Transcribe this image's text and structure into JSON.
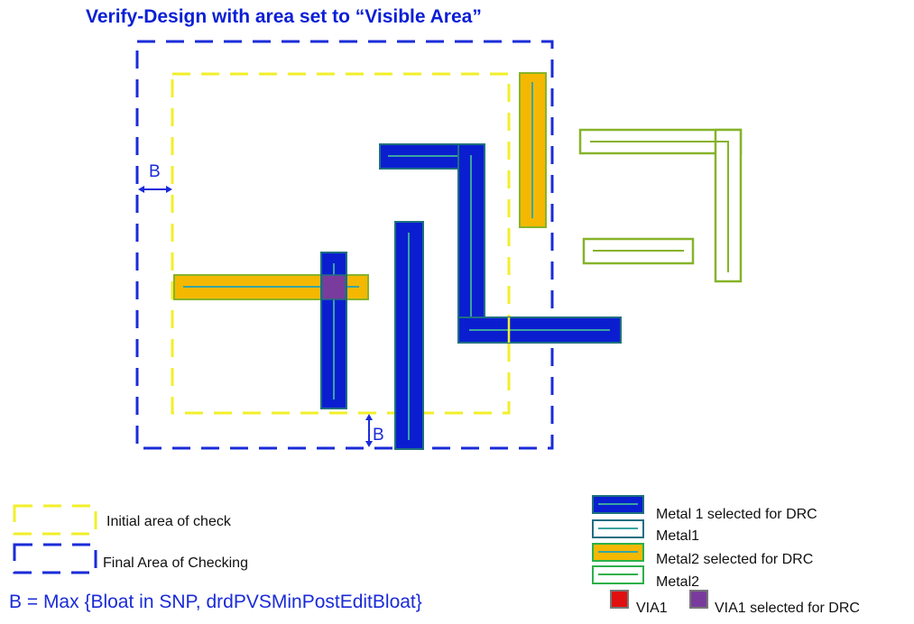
{
  "title": "Verify-Design with area set to “Visible Area”",
  "bloat_label_left": "B",
  "bloat_label_bottom": "B",
  "legend_left": {
    "initial_area": "Initial area of check",
    "final_area": "Final Area of Checking"
  },
  "formula": "B = Max {Bloat in SNP, drdPVSMinPostEditBloat}",
  "legend_right": {
    "metal1_selected": "Metal 1 selected for DRC",
    "metal1": "Metal1",
    "metal2_selected": "Metal2 selected for DRC",
    "metal2": "Metal2",
    "via1": "VIA1",
    "via1_selected": "VIA1 selected for DRC"
  },
  "colors": {
    "title_blue": "#0a1fd6",
    "final_area_blue": "#1a2bd8",
    "initial_area_yellow": "#f2ef2a",
    "metal1_fill": "#0a1ed0",
    "metal1_border": "#1f6f80",
    "metal2_fill": "#f5b800",
    "metal2_border": "#86b32a",
    "metal2_unselected_border": "#86b32a",
    "via1_red": "#e01010",
    "via1_selected_purple": "#7a3c9c",
    "center_line": "#3aa5a0"
  }
}
